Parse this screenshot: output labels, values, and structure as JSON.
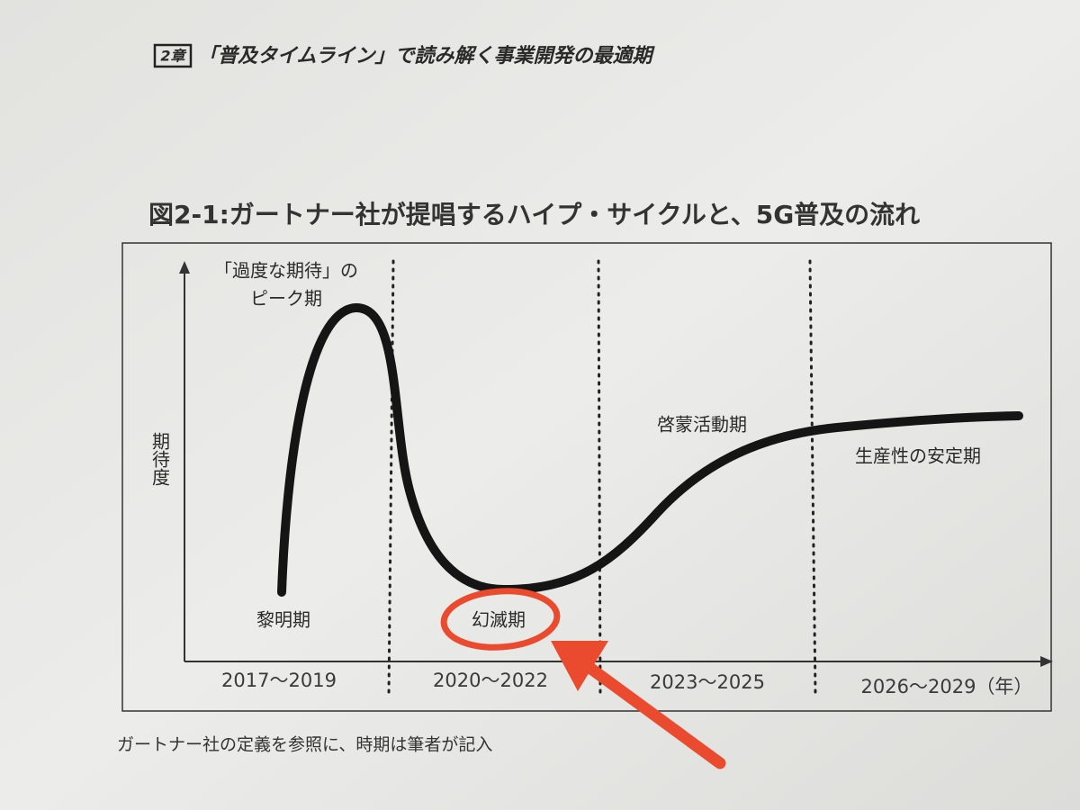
{
  "header": {
    "chapter": "2章",
    "title": "「普及タイムライン」で読み解く事業開発の最適期"
  },
  "figure": {
    "title": "図2-1:ガートナー社が提唱するハイプ・サイクルと、5G普及の流れ",
    "y_axis_label": "期待度",
    "phases": [
      {
        "lines": [
          "「過度な期待」の",
          "ピーク期"
        ]
      },
      {
        "lines": [
          "黎明期"
        ]
      },
      {
        "lines": [
          "幻滅期"
        ]
      },
      {
        "lines": [
          "啓蒙活動期"
        ]
      },
      {
        "lines": [
          "生産性の安定期"
        ]
      }
    ],
    "periods": [
      "2017〜2019",
      "2020〜2022",
      "2023〜2025",
      "2026〜2029（年）"
    ],
    "caption": "ガートナー社の定義を参照に、時期は筆者が記入"
  }
}
